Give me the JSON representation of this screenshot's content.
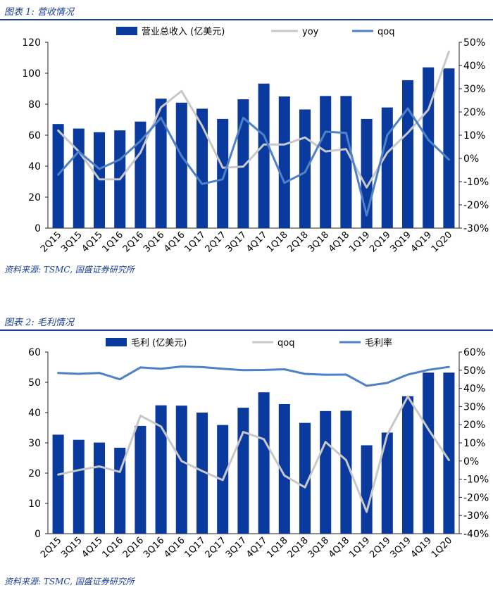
{
  "figures": [
    {
      "title": "图表 1:  营收情况",
      "source": "资料来源:  TSMC, 国盛证券研究所"
    },
    {
      "title": "图表 2:  毛利情况",
      "source": "资料来源:  TSMC, 国盛证券研究所"
    }
  ],
  "colors": {
    "bar": "#0a3a9e",
    "line_gray": "#c8c8c8",
    "line_blue": "#4f81c7",
    "title": "#1c3f95"
  },
  "chart_data": [
    {
      "type": "bar",
      "categories": [
        "2Q15",
        "3Q15",
        "4Q15",
        "1Q16",
        "2Q16",
        "3Q16",
        "4Q16",
        "1Q17",
        "2Q17",
        "3Q17",
        "4Q17",
        "1Q18",
        "2Q18",
        "3Q18",
        "4Q18",
        "1Q19",
        "2Q19",
        "3Q19",
        "4Q19",
        "1Q20"
      ],
      "series": [
        {
          "name": "营业总收入 (亿美元)",
          "kind": "bar",
          "axis": "left",
          "values": [
            67.2,
            64.3,
            61.9,
            63.1,
            68.8,
            83.6,
            81.0,
            77.1,
            70.5,
            83.2,
            93.3,
            85.0,
            76.6,
            85.3,
            85.3,
            70.5,
            77.9,
            95.5,
            103.8,
            103.1
          ]
        },
        {
          "name": "yoy",
          "kind": "line",
          "axis": "right",
          "color": "gray",
          "values": [
            12.0,
            3.0,
            -9.0,
            -9.0,
            2.5,
            22.0,
            29.0,
            14.0,
            -4.0,
            -3.5,
            6.0,
            6.0,
            9.0,
            3.0,
            4.0,
            -12.5,
            2.5,
            11.0,
            21.0,
            46.0
          ]
        },
        {
          "name": "qoq",
          "kind": "line",
          "axis": "right",
          "color": "blue",
          "values": [
            -7.0,
            3.0,
            -4.5,
            -0.5,
            7.5,
            17.5,
            1.0,
            -11.0,
            -9.0,
            17.5,
            10.0,
            -10.5,
            -6.0,
            11.5,
            11.0,
            -24.5,
            10.0,
            21.5,
            8.0,
            -0.5
          ]
        }
      ],
      "ylim_left": [
        0,
        120
      ],
      "yticks_left": [
        0,
        20,
        40,
        60,
        80,
        100,
        120
      ],
      "ylim_right": [
        -30,
        50
      ],
      "yticks_right": [
        -30,
        -20,
        -10,
        0,
        10,
        20,
        30,
        40,
        50
      ],
      "right_tick_format": "percent",
      "legend": [
        "营业总收入 (亿美元)",
        "yoy",
        "qoq"
      ]
    },
    {
      "type": "bar",
      "categories": [
        "2Q15",
        "3Q15",
        "4Q15",
        "1Q16",
        "2Q16",
        "3Q16",
        "4Q16",
        "1Q17",
        "2Q17",
        "3Q17",
        "4Q17",
        "1Q18",
        "2Q18",
        "3Q18",
        "4Q18",
        "1Q19",
        "2Q19",
        "3Q19",
        "4Q19",
        "1Q20"
      ],
      "series": [
        {
          "name": "毛利 (亿美元)",
          "kind": "bar",
          "axis": "left",
          "values": [
            32.7,
            31.0,
            30.1,
            28.4,
            35.6,
            42.4,
            42.3,
            40.0,
            35.9,
            41.6,
            46.7,
            42.8,
            36.6,
            40.5,
            40.6,
            29.2,
            33.4,
            45.4,
            53.2,
            53.2
          ]
        },
        {
          "name": "qoq",
          "kind": "line",
          "axis": "right",
          "color": "gray",
          "values": [
            -7.5,
            -5.0,
            -3.0,
            -6.0,
            25.0,
            19.0,
            0.0,
            -5.5,
            -10.5,
            16.0,
            12.0,
            -8.0,
            -14.5,
            10.5,
            0.5,
            -28.0,
            14.5,
            35.5,
            17.5,
            0.5
          ]
        },
        {
          "name": "毛利率",
          "kind": "line",
          "axis": "right",
          "color": "blue",
          "values": [
            48.5,
            48.0,
            48.5,
            45.0,
            51.5,
            50.8,
            52.0,
            51.7,
            50.8,
            50.0,
            50.1,
            50.5,
            48.0,
            47.5,
            47.6,
            41.4,
            43.0,
            47.6,
            50.2,
            51.8
          ]
        }
      ],
      "ylim_left": [
        0,
        60
      ],
      "yticks_left": [
        0,
        10,
        20,
        30,
        40,
        50,
        60
      ],
      "ylim_right": [
        -40,
        60
      ],
      "yticks_right": [
        -40,
        -30,
        -20,
        -10,
        0,
        10,
        20,
        30,
        40,
        50,
        60
      ],
      "right_tick_format": "percent",
      "legend": [
        "毛利 (亿美元)",
        "qoq",
        "毛利率"
      ]
    }
  ]
}
